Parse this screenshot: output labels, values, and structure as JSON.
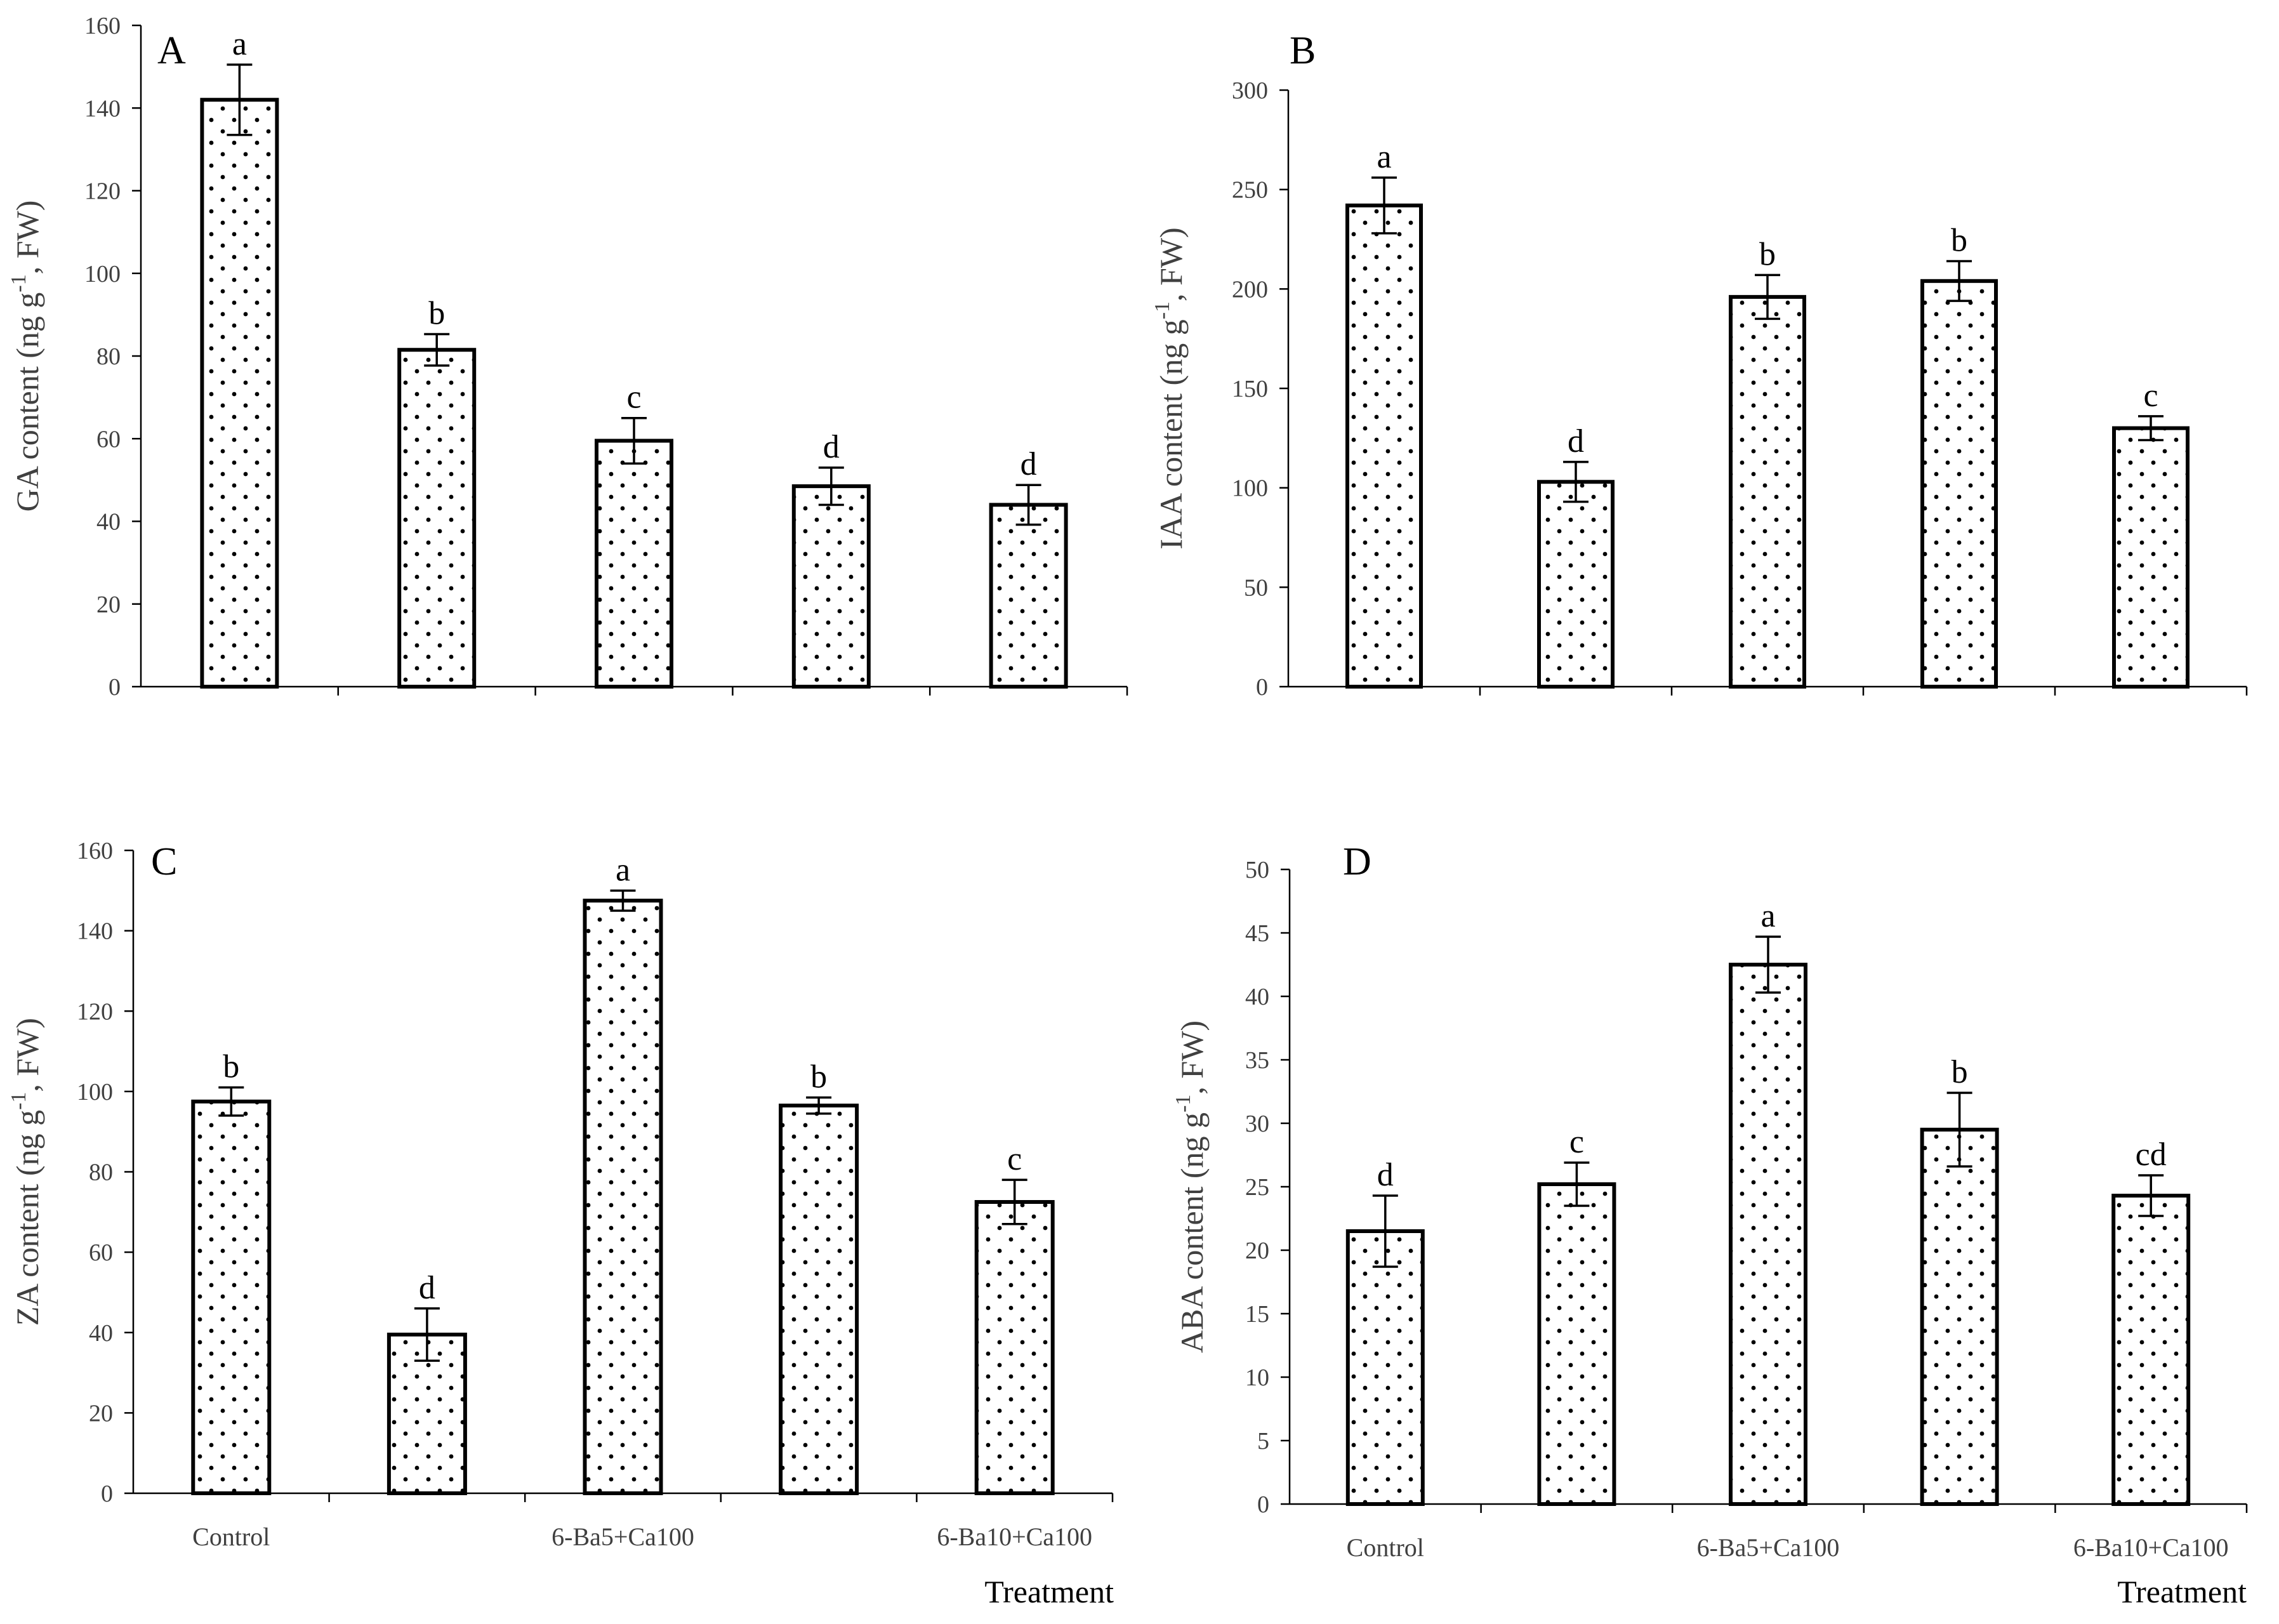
{
  "chart_data": [
    {
      "type": "bar",
      "panel": "A",
      "title": "",
      "xlabel": "",
      "ylabel": "GA content (ng g-1, FW)",
      "ylabel_base": "GA content (ng g",
      "ylabel_sup": "-1",
      "ylabel_tail": ", FW)",
      "ylim": [
        0,
        160
      ],
      "yticks": [
        0,
        20,
        40,
        60,
        80,
        100,
        120,
        140,
        160
      ],
      "categories": [
        "",
        "",
        "",
        "",
        ""
      ],
      "values": [
        142,
        81.5,
        59.5,
        48.5,
        44
      ],
      "errors": [
        8.5,
        3.8,
        5.5,
        4.5,
        4.8
      ],
      "letters": [
        "a",
        "b",
        "c",
        "d",
        "d"
      ]
    },
    {
      "type": "bar",
      "panel": "B",
      "title": "",
      "xlabel": "",
      "ylabel": "IAA content (ng g-1, FW)",
      "ylabel_base": "IAA content (ng g",
      "ylabel_sup": "-1",
      "ylabel_tail": ", FW)",
      "ylim": [
        0,
        300
      ],
      "yticks": [
        0,
        50,
        100,
        150,
        200,
        250,
        300
      ],
      "categories": [
        "",
        "",
        "",
        "",
        ""
      ],
      "values": [
        242,
        103,
        196,
        204,
        130
      ],
      "errors": [
        14,
        10,
        11,
        10,
        6
      ],
      "letters": [
        "a",
        "d",
        "b",
        "b",
        "c"
      ]
    },
    {
      "type": "bar",
      "panel": "C",
      "title": "",
      "xlabel": "Treatment",
      "ylabel": "ZA content (ng g-1, FW)",
      "ylabel_base": "ZA content (ng g",
      "ylabel_sup": "-1",
      "ylabel_tail": ", FW)",
      "ylim": [
        0,
        160
      ],
      "yticks": [
        0,
        20,
        40,
        60,
        80,
        100,
        120,
        140,
        160
      ],
      "categories": [
        "Control",
        "",
        "6-Ba5+Ca100",
        "",
        "6-Ba10+Ca100"
      ],
      "values": [
        97.5,
        39.5,
        147.5,
        96.5,
        72.5
      ],
      "errors": [
        3.5,
        6.5,
        2.5,
        2,
        5.5
      ],
      "letters": [
        "b",
        "d",
        "a",
        "b",
        "c"
      ]
    },
    {
      "type": "bar",
      "panel": "D",
      "title": "",
      "xlabel": "Treatment",
      "ylabel": "ABA content (ng g-1, FW)",
      "ylabel_base": "ABA content (ng g",
      "ylabel_sup": "-1",
      "ylabel_tail": ", FW)",
      "ylim": [
        0,
        50
      ],
      "yticks": [
        0,
        5,
        10,
        15,
        20,
        25,
        30,
        35,
        40,
        45,
        50
      ],
      "categories": [
        "Control",
        "",
        "6-Ba5+Ca100",
        "",
        "6-Ba10+Ca100"
      ],
      "values": [
        21.5,
        25.2,
        42.5,
        29.5,
        24.3
      ],
      "errors": [
        2.8,
        1.7,
        2.2,
        2.9,
        1.6
      ],
      "letters": [
        "d",
        "c",
        "a",
        "b",
        "cd"
      ]
    }
  ]
}
